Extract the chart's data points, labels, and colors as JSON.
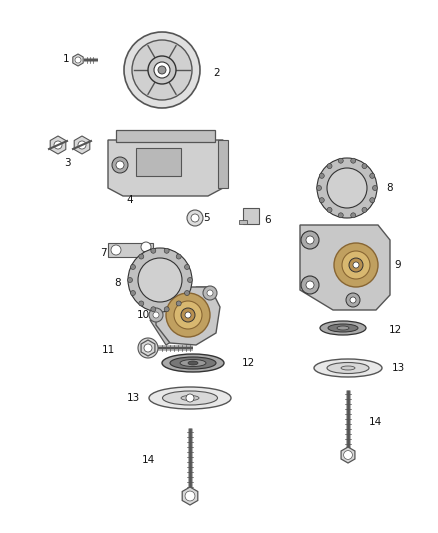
{
  "background_color": "#ffffff",
  "figsize": [
    4.38,
    5.33
  ],
  "dpi": 100,
  "gray": "#555555",
  "dgray": "#333333",
  "lgray": "#aaaaaa",
  "black": "#111111",
  "part_color": "#d8d8d8",
  "dark_part": "#888888"
}
